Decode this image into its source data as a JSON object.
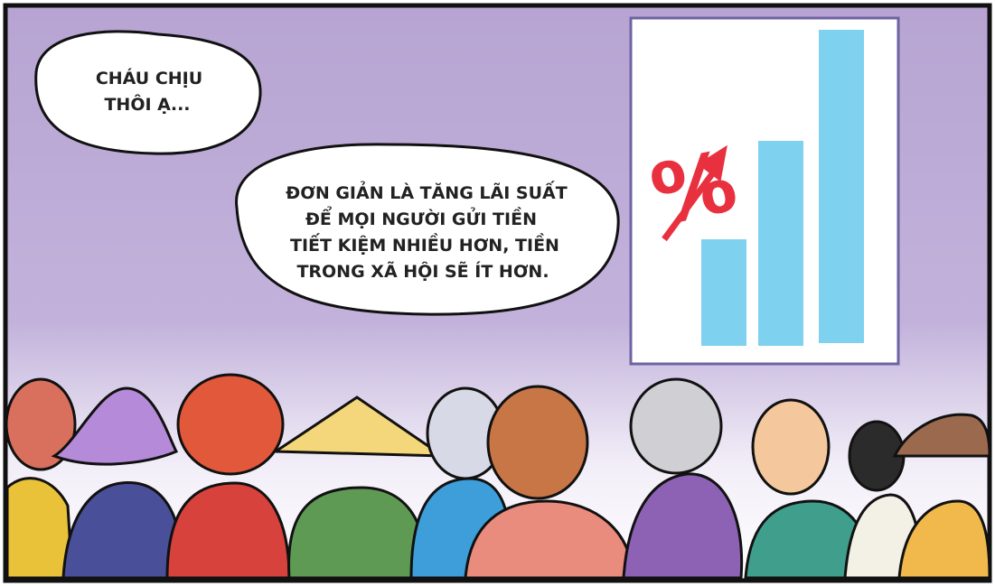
{
  "bubbles": [
    {
      "lines": [
        "CHÁU CHỊU",
        "THÔI Ạ..."
      ]
    },
    {
      "lines": [
        "ĐƠN GIẢN LÀ TĂNG LÃI SUẤT",
        "ĐỂ MỌI NGƯỜI GỬI TIỀN",
        "TIẾT KIỆM NHIỀU HƠN, TIỀN",
        "TRONG XÃ HỘI SẼ ÍT HƠN."
      ]
    }
  ],
  "board": {
    "symbol": "%"
  }
}
